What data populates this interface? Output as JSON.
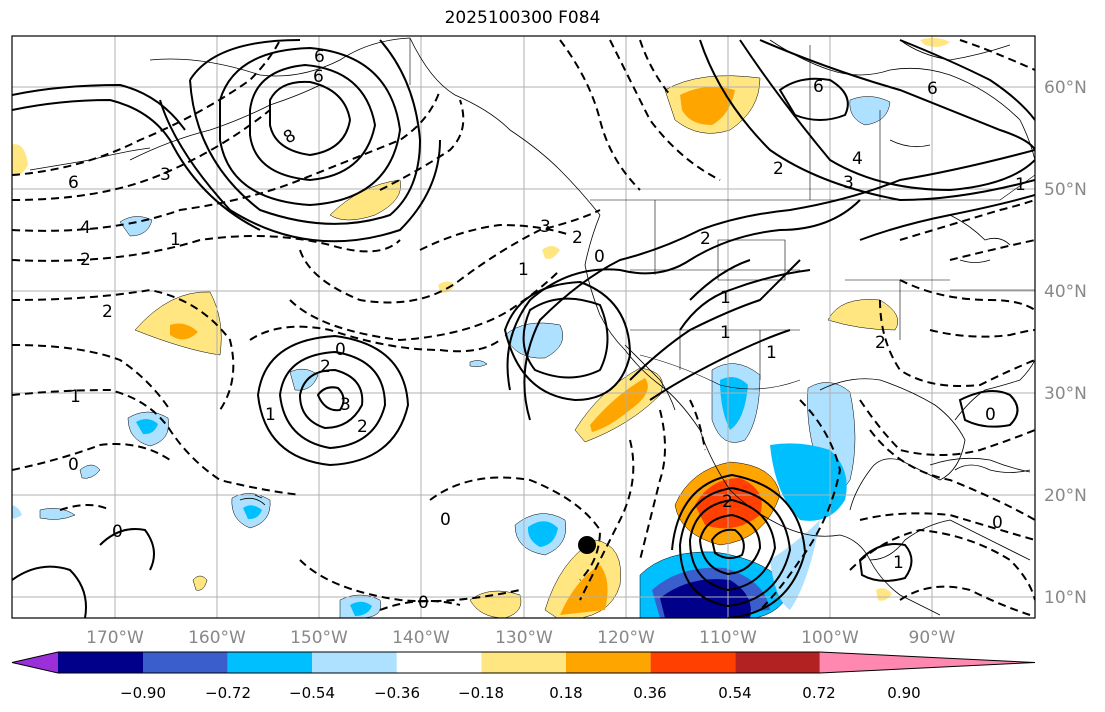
{
  "title": "2025100300 F084",
  "map": {
    "lat_labels": [
      "60°N",
      "50°N",
      "40°N",
      "30°N",
      "20°N",
      "10°N"
    ],
    "lon_labels": [
      "170°W",
      "160°W",
      "150°W",
      "140°W",
      "130°W",
      "120°W",
      "110°W",
      "100°W",
      "90°W"
    ],
    "contour_labels": [
      "6",
      "8",
      "6",
      "4",
      "2",
      "1",
      "3",
      "2",
      "1",
      "6",
      "4",
      "2",
      "3",
      "2",
      "1",
      "0",
      "3",
      "2",
      "3",
      "1",
      "2",
      "2",
      "1",
      "1",
      "0",
      "0",
      "1",
      "0",
      "0",
      "0",
      "6",
      "6",
      "0",
      "1",
      "0",
      "2",
      "2",
      "1"
    ],
    "storm_marker": "black dot",
    "coastline_color": "#000000",
    "grid_color": "#b0b0b0"
  },
  "colorbar": {
    "ticks": [
      "−0.90",
      "−0.72",
      "−0.54",
      "−0.36",
      "−0.18",
      "0.18",
      "0.36",
      "0.54",
      "0.72",
      "0.90"
    ],
    "colors": [
      "#9b30d9",
      "#00008b",
      "#3a5fcd",
      "#00bfff",
      "#aee0ff",
      "#ffffff",
      "#ffe680",
      "#ffa500",
      "#ff4000",
      "#b22222",
      "#ff88b0"
    ]
  }
}
